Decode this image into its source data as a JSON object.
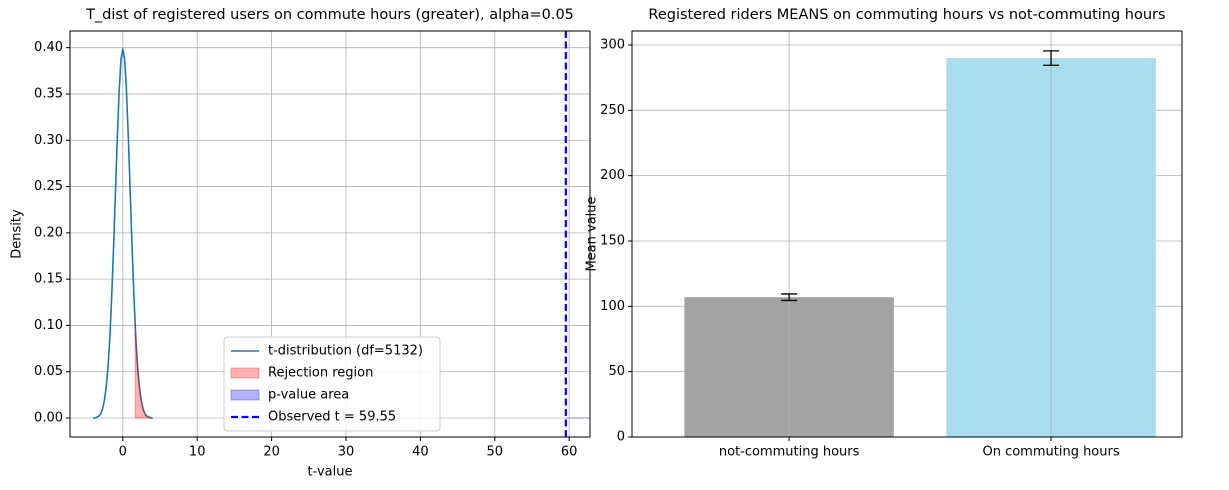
{
  "chart_data": [
    {
      "type": "line",
      "title": "T_dist of registered users on commute hours (greater), alpha=0.05",
      "xlabel": "t-value",
      "ylabel": "Density",
      "xlim": [
        -7.1,
        62.8
      ],
      "ylim": [
        -0.0205,
        0.418
      ],
      "xticks": [
        0,
        10,
        20,
        30,
        40,
        50,
        60
      ],
      "yticks": [
        {
          "value": 0,
          "label": "0.00"
        },
        {
          "value": 0.05,
          "label": "0.05"
        },
        {
          "value": 0.1,
          "label": "0.10"
        },
        {
          "value": 0.15,
          "label": "0.15"
        },
        {
          "value": 0.2,
          "label": "0.20"
        },
        {
          "value": 0.25,
          "label": "0.25"
        },
        {
          "value": 0.3,
          "label": "0.30"
        },
        {
          "value": 0.35,
          "label": "0.35"
        },
        {
          "value": 0.4,
          "label": "0.40"
        }
      ],
      "grid": true,
      "legend": "lower center",
      "series": [
        {
          "name": "t-distribution (df=5132)",
          "color": "#1f77b4",
          "style": "line",
          "x": [
            -4,
            -3.75,
            -3.5,
            -3.25,
            -3,
            -2.75,
            -2.5,
            -2.25,
            -2,
            -1.75,
            -1.5,
            -1.25,
            -1,
            -0.75,
            -0.5,
            -0.25,
            0,
            0.25,
            0.5,
            0.75,
            1,
            1.25,
            1.5,
            1.75,
            2,
            2.25,
            2.5,
            2.75,
            3,
            3.25,
            3.5,
            3.75,
            4
          ],
          "values": [
            0.0,
            0.0,
            0.001,
            0.002,
            0.004,
            0.009,
            0.018,
            0.032,
            0.054,
            0.086,
            0.13,
            0.183,
            0.242,
            0.301,
            0.352,
            0.387,
            0.399,
            0.387,
            0.352,
            0.301,
            0.242,
            0.183,
            0.13,
            0.086,
            0.054,
            0.032,
            0.018,
            0.009,
            0.004,
            0.002,
            0.001,
            0.0,
            0.0
          ]
        },
        {
          "name": "Rejection region",
          "color": "red",
          "opacity": 0.3,
          "style": "area",
          "x": [
            1.65,
            1.75,
            2,
            2.25,
            2.5,
            2.75,
            3,
            3.25,
            3.5,
            3.75,
            4
          ],
          "values": [
            0.102,
            0.086,
            0.054,
            0.032,
            0.018,
            0.009,
            0.004,
            0.002,
            0.001,
            0.0,
            0.0
          ]
        },
        {
          "name": "p-value area",
          "color": "blue",
          "opacity": 0.3,
          "style": "area",
          "x": [
            59.55,
            62.8
          ],
          "values": [
            0,
            0
          ]
        },
        {
          "name": "Observed t = 59.55",
          "color": "blue",
          "style": "vline",
          "x": [
            59.55
          ]
        }
      ]
    },
    {
      "type": "bar",
      "title": "Registered riders MEANS on commuting hours vs not-commuting hours",
      "ylabel": "Mean value",
      "categories": [
        "not-commuting hours",
        "On commuting hours"
      ],
      "values": [
        107,
        290
      ],
      "errors": [
        2.5,
        5.5
      ],
      "colors": [
        "#a3a3a3",
        "#a8dcef"
      ],
      "ylim": [
        0,
        310.7
      ],
      "yticks": [
        0,
        50,
        100,
        150,
        200,
        250,
        300
      ],
      "grid": true
    }
  ]
}
